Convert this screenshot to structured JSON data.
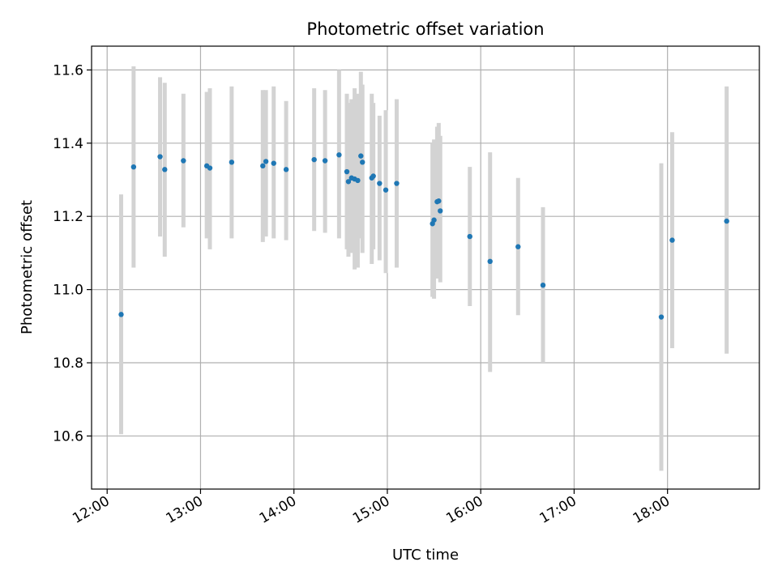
{
  "chart_data": {
    "type": "scatter",
    "title": "Photometric offset variation",
    "xlabel": "UTC time",
    "ylabel": "Photometric offset",
    "xlim": [
      "11:50",
      "18:59"
    ],
    "ylim": [
      10.455,
      11.665
    ],
    "grid": true,
    "x_ticks": [
      "12:00",
      "13:00",
      "14:00",
      "15:00",
      "16:00",
      "17:00",
      "18:00"
    ],
    "y_ticks": [
      "10.6",
      "10.8",
      "11.0",
      "11.2",
      "11.4",
      "11.6"
    ],
    "colors": {
      "points": "#1f77b4",
      "error_bars": "#d3d3d3",
      "grid": "#b0b0b0"
    },
    "points": [
      {
        "t": "12:09",
        "y": 10.932,
        "lo": 10.605,
        "hi": 11.26
      },
      {
        "t": "12:17",
        "y": 11.335,
        "lo": 11.06,
        "hi": 11.61
      },
      {
        "t": "12:34",
        "y": 11.363,
        "lo": 11.145,
        "hi": 11.58
      },
      {
        "t": "12:37",
        "y": 11.328,
        "lo": 11.09,
        "hi": 11.565
      },
      {
        "t": "12:49",
        "y": 11.352,
        "lo": 11.17,
        "hi": 11.535
      },
      {
        "t": "13:04",
        "y": 11.338,
        "lo": 11.14,
        "hi": 11.54
      },
      {
        "t": "13:06",
        "y": 11.332,
        "lo": 11.11,
        "hi": 11.55
      },
      {
        "t": "13:20",
        "y": 11.348,
        "lo": 11.14,
        "hi": 11.555
      },
      {
        "t": "13:40",
        "y": 11.338,
        "lo": 11.13,
        "hi": 11.545
      },
      {
        "t": "13:42",
        "y": 11.35,
        "lo": 11.145,
        "hi": 11.545
      },
      {
        "t": "13:47",
        "y": 11.345,
        "lo": 11.14,
        "hi": 11.555
      },
      {
        "t": "13:55",
        "y": 11.328,
        "lo": 11.135,
        "hi": 11.515
      },
      {
        "t": "14:13",
        "y": 11.355,
        "lo": 11.16,
        "hi": 11.55
      },
      {
        "t": "14:20",
        "y": 11.352,
        "lo": 11.155,
        "hi": 11.545
      },
      {
        "t": "14:29",
        "y": 11.368,
        "lo": 11.14,
        "hi": 11.6
      },
      {
        "t": "14:34",
        "y": 11.322,
        "lo": 11.11,
        "hi": 11.535
      },
      {
        "t": "14:35",
        "y": 11.295,
        "lo": 11.09,
        "hi": 11.51
      },
      {
        "t": "14:37",
        "y": 11.305,
        "lo": 11.1,
        "hi": 11.52
      },
      {
        "t": "14:39",
        "y": 11.302,
        "lo": 11.055,
        "hi": 11.55
      },
      {
        "t": "14:41",
        "y": 11.298,
        "lo": 11.06,
        "hi": 11.535
      },
      {
        "t": "14:43",
        "y": 11.365,
        "lo": 11.14,
        "hi": 11.595
      },
      {
        "t": "14:44",
        "y": 11.348,
        "lo": 11.1,
        "hi": 11.56
      },
      {
        "t": "14:50",
        "y": 11.305,
        "lo": 11.07,
        "hi": 11.535
      },
      {
        "t": "14:51",
        "y": 11.31,
        "lo": 11.11,
        "hi": 11.51
      },
      {
        "t": "14:55",
        "y": 11.29,
        "lo": 11.08,
        "hi": 11.475
      },
      {
        "t": "14:59",
        "y": 11.272,
        "lo": 11.045,
        "hi": 11.49
      },
      {
        "t": "15:06",
        "y": 11.29,
        "lo": 11.06,
        "hi": 11.52
      },
      {
        "t": "15:29",
        "y": 11.18,
        "lo": 10.98,
        "hi": 11.4
      },
      {
        "t": "15:30",
        "y": 11.19,
        "lo": 10.975,
        "hi": 11.41
      },
      {
        "t": "15:32",
        "y": 11.24,
        "lo": 11.03,
        "hi": 11.445
      },
      {
        "t": "15:33",
        "y": 11.242,
        "lo": 11.04,
        "hi": 11.455
      },
      {
        "t": "15:34",
        "y": 11.215,
        "lo": 11.02,
        "hi": 11.42
      },
      {
        "t": "15:53",
        "y": 11.145,
        "lo": 10.955,
        "hi": 11.335
      },
      {
        "t": "16:06",
        "y": 11.077,
        "lo": 10.775,
        "hi": 11.375
      },
      {
        "t": "16:24",
        "y": 11.117,
        "lo": 10.93,
        "hi": 11.305
      },
      {
        "t": "16:40",
        "y": 11.012,
        "lo": 10.8,
        "hi": 11.225
      },
      {
        "t": "17:56",
        "y": 10.925,
        "lo": 10.505,
        "hi": 11.345
      },
      {
        "t": "18:03",
        "y": 11.135,
        "lo": 10.84,
        "hi": 11.43
      },
      {
        "t": "18:38",
        "y": 11.187,
        "lo": 10.825,
        "hi": 11.555
      }
    ]
  }
}
